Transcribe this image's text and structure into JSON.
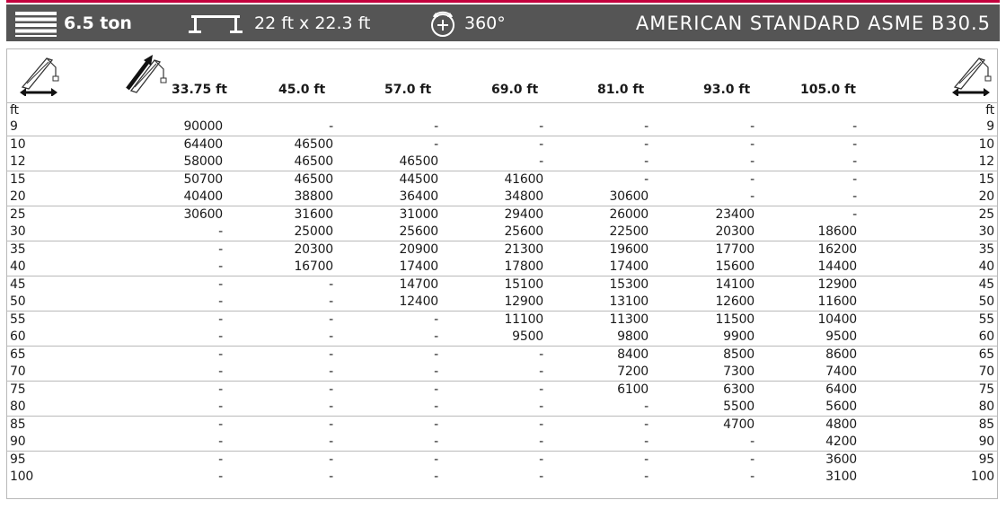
{
  "header": {
    "capacity": "6.5 ton",
    "outrigger": "22 ft x 22.3 ft",
    "rotation": "360°",
    "standard": "AMERICAN STANDARD ASME B30.5"
  },
  "table": {
    "boom_lengths": [
      "33.75 ft",
      "45.0 ft",
      "57.0 ft",
      "69.0 ft",
      "81.0 ft",
      "93.0 ft",
      "105.0 ft"
    ],
    "unit_left": "ft",
    "unit_right": "ft",
    "rows": [
      {
        "radius": "9",
        "values": [
          "90000",
          "-",
          "-",
          "-",
          "-",
          "-",
          "-"
        ]
      },
      {
        "radius": "10",
        "values": [
          "64400",
          "46500",
          "-",
          "-",
          "-",
          "-",
          "-"
        ]
      },
      {
        "radius": "12",
        "values": [
          "58000",
          "46500",
          "46500",
          "-",
          "-",
          "-",
          "-"
        ]
      },
      {
        "radius": "15",
        "values": [
          "50700",
          "46500",
          "44500",
          "41600",
          "-",
          "-",
          "-"
        ]
      },
      {
        "radius": "20",
        "values": [
          "40400",
          "38800",
          "36400",
          "34800",
          "30600",
          "-",
          "-"
        ]
      },
      {
        "radius": "25",
        "values": [
          "30600",
          "31600",
          "31000",
          "29400",
          "26000",
          "23400",
          "-"
        ]
      },
      {
        "radius": "30",
        "values": [
          "-",
          "25000",
          "25600",
          "25600",
          "22500",
          "20300",
          "18600"
        ]
      },
      {
        "radius": "35",
        "values": [
          "-",
          "20300",
          "20900",
          "21300",
          "19600",
          "17700",
          "16200"
        ]
      },
      {
        "radius": "40",
        "values": [
          "-",
          "16700",
          "17400",
          "17800",
          "17400",
          "15600",
          "14400"
        ]
      },
      {
        "radius": "45",
        "values": [
          "-",
          "-",
          "14700",
          "15100",
          "15300",
          "14100",
          "12900"
        ]
      },
      {
        "radius": "50",
        "values": [
          "-",
          "-",
          "12400",
          "12900",
          "13100",
          "12600",
          "11600"
        ]
      },
      {
        "radius": "55",
        "values": [
          "-",
          "-",
          "-",
          "11100",
          "11300",
          "11500",
          "10400"
        ]
      },
      {
        "radius": "60",
        "values": [
          "-",
          "-",
          "-",
          "9500",
          "9800",
          "9900",
          "9500"
        ]
      },
      {
        "radius": "65",
        "values": [
          "-",
          "-",
          "-",
          "-",
          "8400",
          "8500",
          "8600"
        ]
      },
      {
        "radius": "70",
        "values": [
          "-",
          "-",
          "-",
          "-",
          "7200",
          "7300",
          "7400"
        ]
      },
      {
        "radius": "75",
        "values": [
          "-",
          "-",
          "-",
          "-",
          "6100",
          "6300",
          "6400"
        ]
      },
      {
        "radius": "80",
        "values": [
          "-",
          "-",
          "-",
          "-",
          "-",
          "5500",
          "5600"
        ]
      },
      {
        "radius": "85",
        "values": [
          "-",
          "-",
          "-",
          "-",
          "-",
          "4700",
          "4800"
        ]
      },
      {
        "radius": "90",
        "values": [
          "-",
          "-",
          "-",
          "-",
          "-",
          "-",
          "4200"
        ]
      },
      {
        "radius": "95",
        "values": [
          "-",
          "-",
          "-",
          "-",
          "-",
          "-",
          "3600"
        ]
      },
      {
        "radius": "100",
        "values": [
          "-",
          "-",
          "-",
          "-",
          "-",
          "-",
          "3100"
        ]
      }
    ]
  },
  "colors": {
    "header_bg": "#555555",
    "accent_line": "#c4003d",
    "grid": "#b9b9b9"
  },
  "icons": {
    "capacity": "stacked-bars-icon",
    "outrigger": "outrigger-span-icon",
    "rotation": "rotation-360-icon",
    "boom_radius_left": "crane-boom-radius-icon",
    "boom_length": "boom-length-icon",
    "boom_radius_right": "crane-boom-radius-icon"
  }
}
